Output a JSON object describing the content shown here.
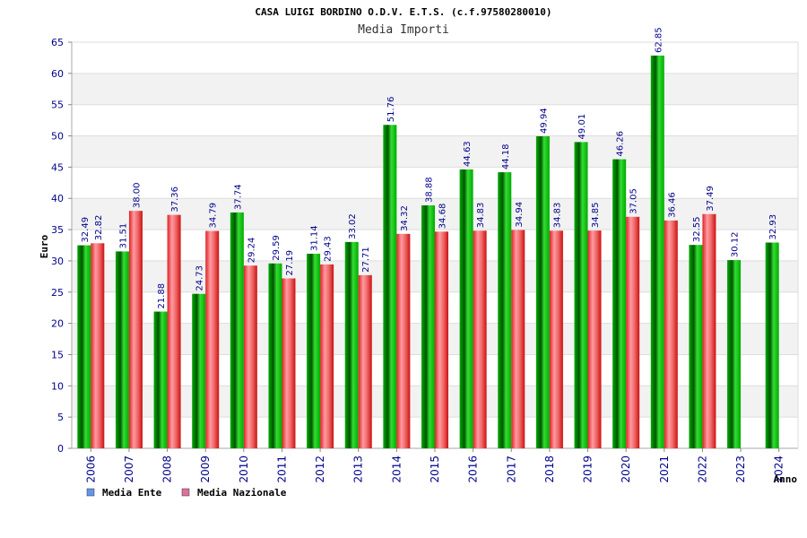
{
  "colors": {
    "ente": "#00aa00",
    "nazionale": "#e53333",
    "legend_ente": "#6495ed",
    "legend_nazionale": "#e0709a",
    "band": "#f2f2f2",
    "tick_text": "#00008b"
  },
  "chart_data": {
    "type": "bar",
    "title": "CASA LUIGI BORDINO O.D.V. E.T.S. (c.f.97580280010)",
    "subtitle": "Media Importi",
    "xlabel": "Anno",
    "ylabel": "Euro",
    "ylim": [
      0,
      65
    ],
    "yticks": [
      "0",
      "5",
      "10",
      "15",
      "20",
      "25",
      "30",
      "35",
      "40",
      "45",
      "50",
      "55",
      "60",
      "65"
    ],
    "categories": [
      "2006",
      "2007",
      "2008",
      "2009",
      "2010",
      "2011",
      "2012",
      "2013",
      "2014",
      "2015",
      "2016",
      "2017",
      "2018",
      "2019",
      "2020",
      "2021",
      "2022",
      "2023",
      "2024"
    ],
    "series": [
      {
        "name": "Media Ente",
        "values": [
          32.49,
          31.51,
          21.88,
          24.73,
          37.74,
          29.59,
          31.14,
          33.02,
          51.76,
          38.88,
          44.63,
          44.18,
          49.94,
          49.01,
          46.26,
          62.85,
          32.55,
          30.12,
          32.93
        ],
        "labels": [
          "32.49",
          "31.51",
          "21.88",
          "24.73",
          "37.74",
          "29.59",
          "31.14",
          "33.02",
          "51.76",
          "38.88",
          "44.63",
          "44.18",
          "49.94",
          "49.01",
          "46.26",
          "62.85",
          "32.55",
          "30.12",
          "32.93"
        ]
      },
      {
        "name": "Media Nazionale",
        "values": [
          32.82,
          38.0,
          37.36,
          34.79,
          29.24,
          27.19,
          29.43,
          27.71,
          34.32,
          34.68,
          34.83,
          34.94,
          34.83,
          34.85,
          37.05,
          36.46,
          37.49,
          null,
          null
        ],
        "labels": [
          "32.82",
          "38.00",
          "37.36",
          "34.79",
          "29.24",
          "27.19",
          "29.43",
          "27.71",
          "34.32",
          "34.68",
          "34.83",
          "34.94",
          "34.83",
          "34.85",
          "37.05",
          "36.46",
          "37.49",
          null,
          null
        ]
      }
    ],
    "grid": true,
    "legend_position": "bottom-left"
  }
}
